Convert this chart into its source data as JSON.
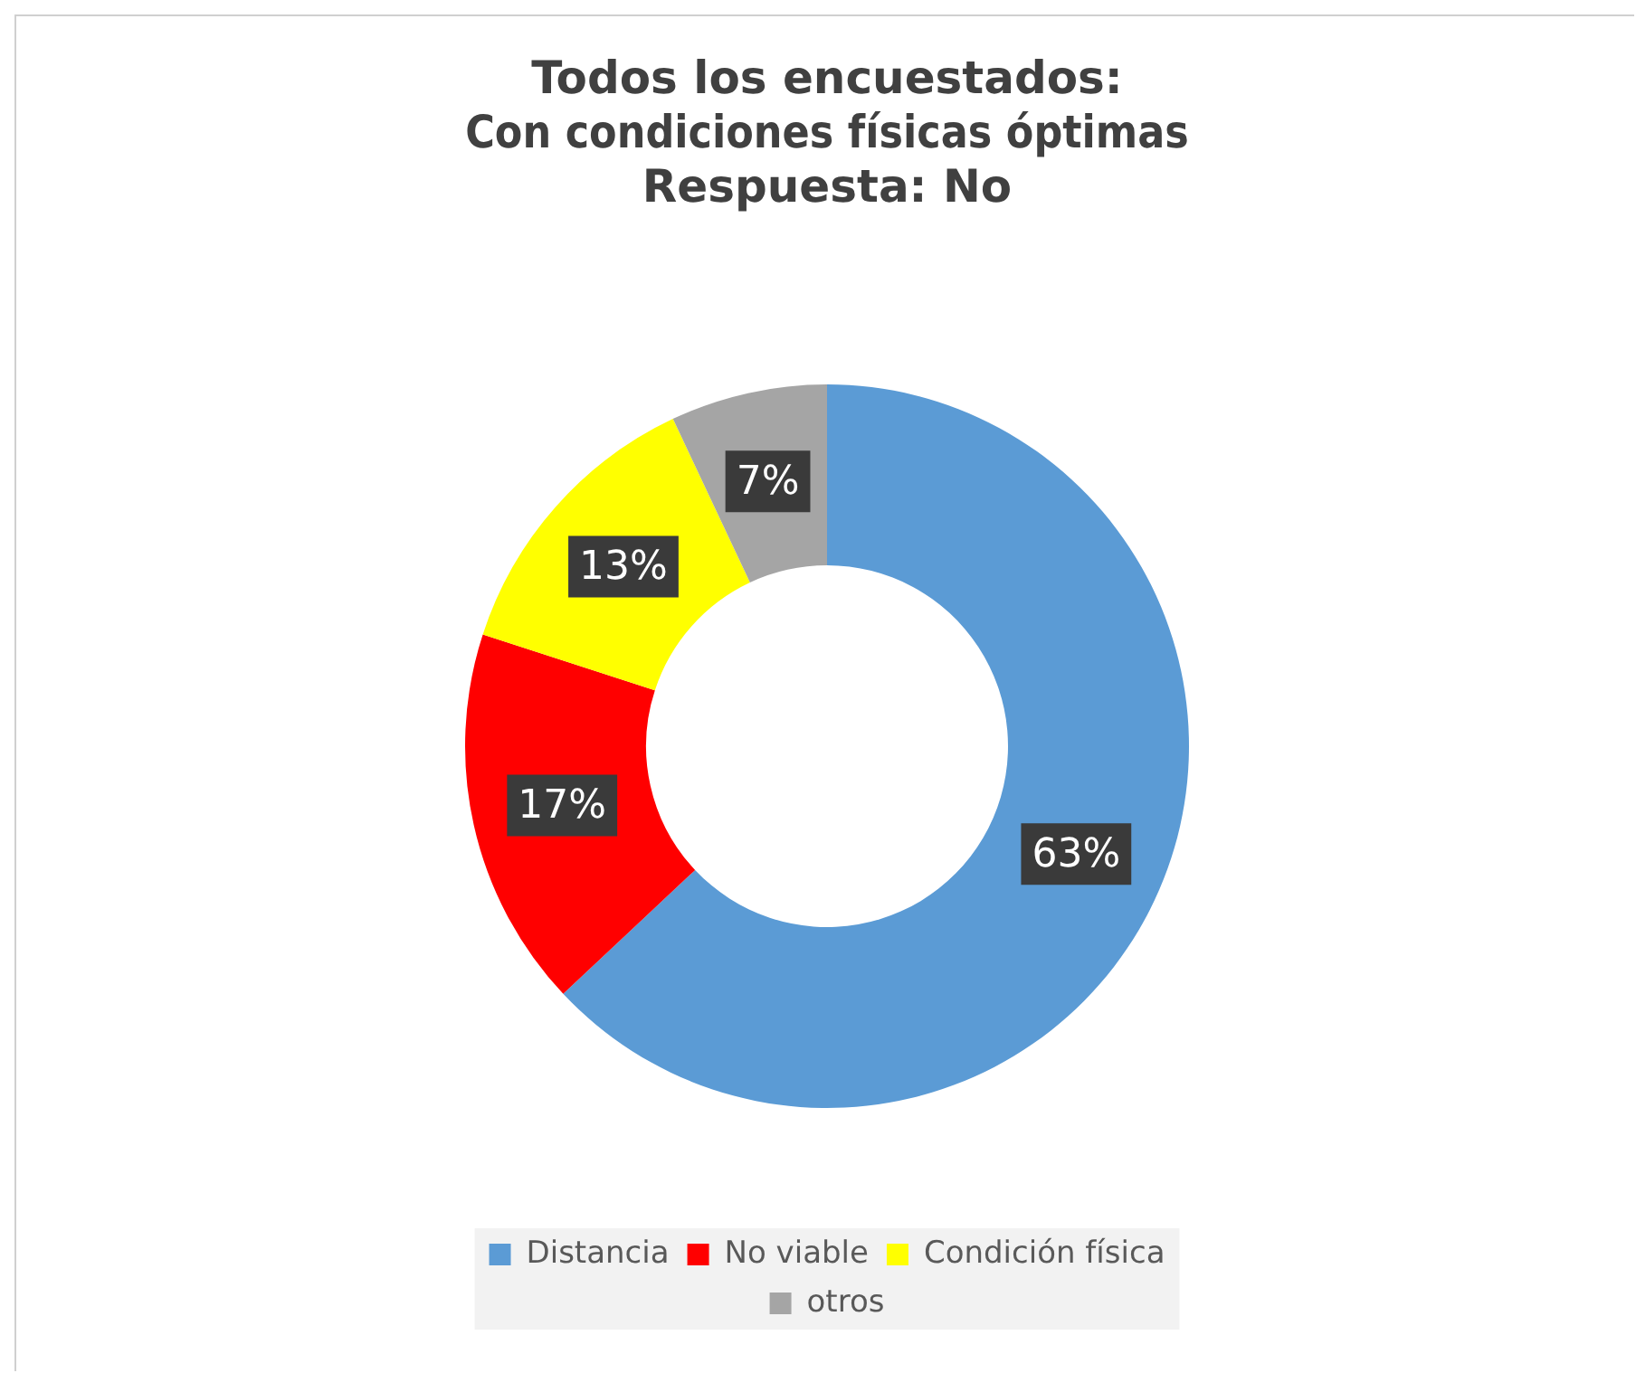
{
  "chart_data": {
    "type": "donut",
    "title": "Todos los encuestados:\nCon condiciones físicas óptimas\nRespuesta: No",
    "categories": [
      "Distancia",
      "No viable",
      "Condición física",
      "otros"
    ],
    "values": [
      63,
      17,
      13,
      7
    ],
    "colors": [
      "#5b9bd5",
      "#ff0000",
      "#ffff00",
      "#a5a5a5"
    ],
    "value_labels": [
      "63%",
      "17%",
      "13%",
      "7%"
    ],
    "legend": "bottom"
  }
}
